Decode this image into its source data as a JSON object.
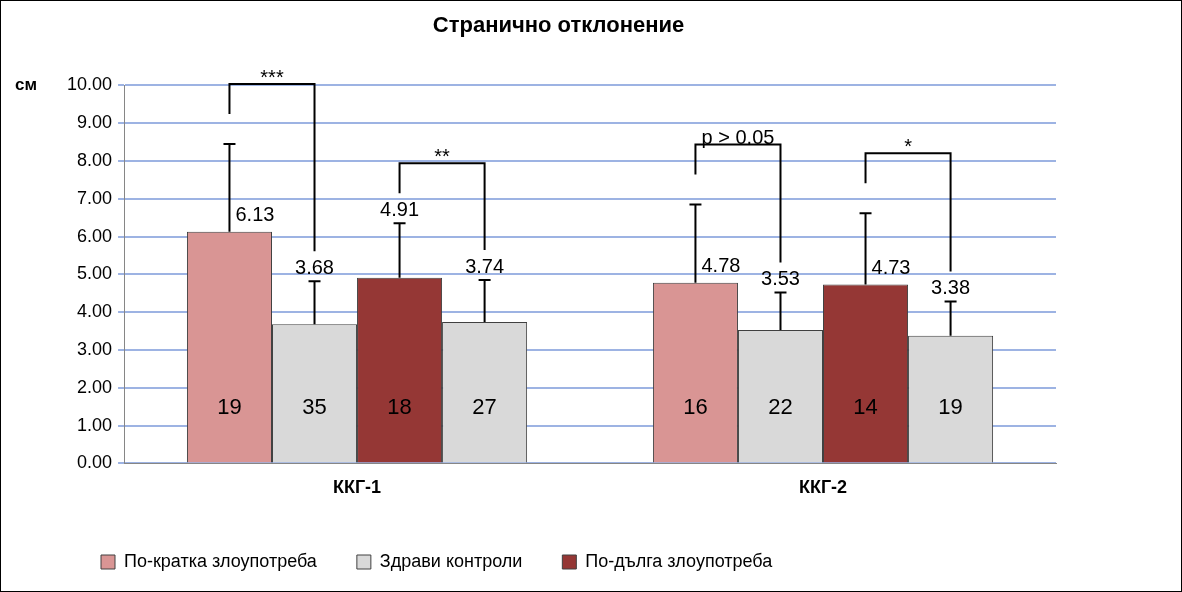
{
  "chart_data": {
    "type": "bar",
    "title": "Странично отклонение",
    "ylabel": "см",
    "categories": [
      "ККГ-1",
      "ККГ-2"
    ],
    "series": [
      {
        "name": "По-кратка злоупотреба",
        "color": "#d99594",
        "values": [
          6.13,
          4.78
        ],
        "errors": [
          [
            6.13,
            8.45
          ],
          [
            4.78,
            6.85
          ]
        ]
      },
      {
        "name": "Здрави контроли",
        "color": "#d9d9d9",
        "values": [
          3.68,
          3.53
        ],
        "errors": [
          [
            3.68,
            4.82
          ],
          [
            3.53,
            4.52
          ]
        ]
      },
      {
        "name": "По-дълга злоупотреба",
        "color": "#953735",
        "values": [
          4.91,
          4.73
        ],
        "errors": [
          [
            4.91,
            6.35
          ],
          [
            4.73,
            6.62
          ]
        ]
      },
      {
        "color": "#d9d9d9",
        "values": [
          3.74,
          3.38
        ],
        "errors": [
          [
            3.74,
            4.85
          ],
          [
            3.38,
            4.28
          ]
        ]
      }
    ],
    "ylim": [
      0,
      10
    ],
    "yticks": [
      {
        "value": 0,
        "label": "0.00"
      },
      {
        "value": 1,
        "label": "1.00"
      },
      {
        "value": 2,
        "label": "2.00"
      },
      {
        "value": 3,
        "label": "3.00"
      },
      {
        "value": 4,
        "label": "4.00"
      },
      {
        "value": 5,
        "label": "5.00"
      },
      {
        "value": 6,
        "label": "6.00"
      },
      {
        "value": 7,
        "label": "7.00"
      },
      {
        "value": 8,
        "label": "8.00"
      },
      {
        "value": 9,
        "label": "9.00"
      },
      {
        "value": 10,
        "label": "10.00"
      }
    ],
    "grid": "y",
    "legend": "bottom",
    "data_labels": true,
    "annotations": [
      "19",
      "35",
      "18",
      "27",
      "16",
      "22",
      "14",
      "19",
      "***",
      "**",
      "p > 0.05",
      "*"
    ]
  }
}
